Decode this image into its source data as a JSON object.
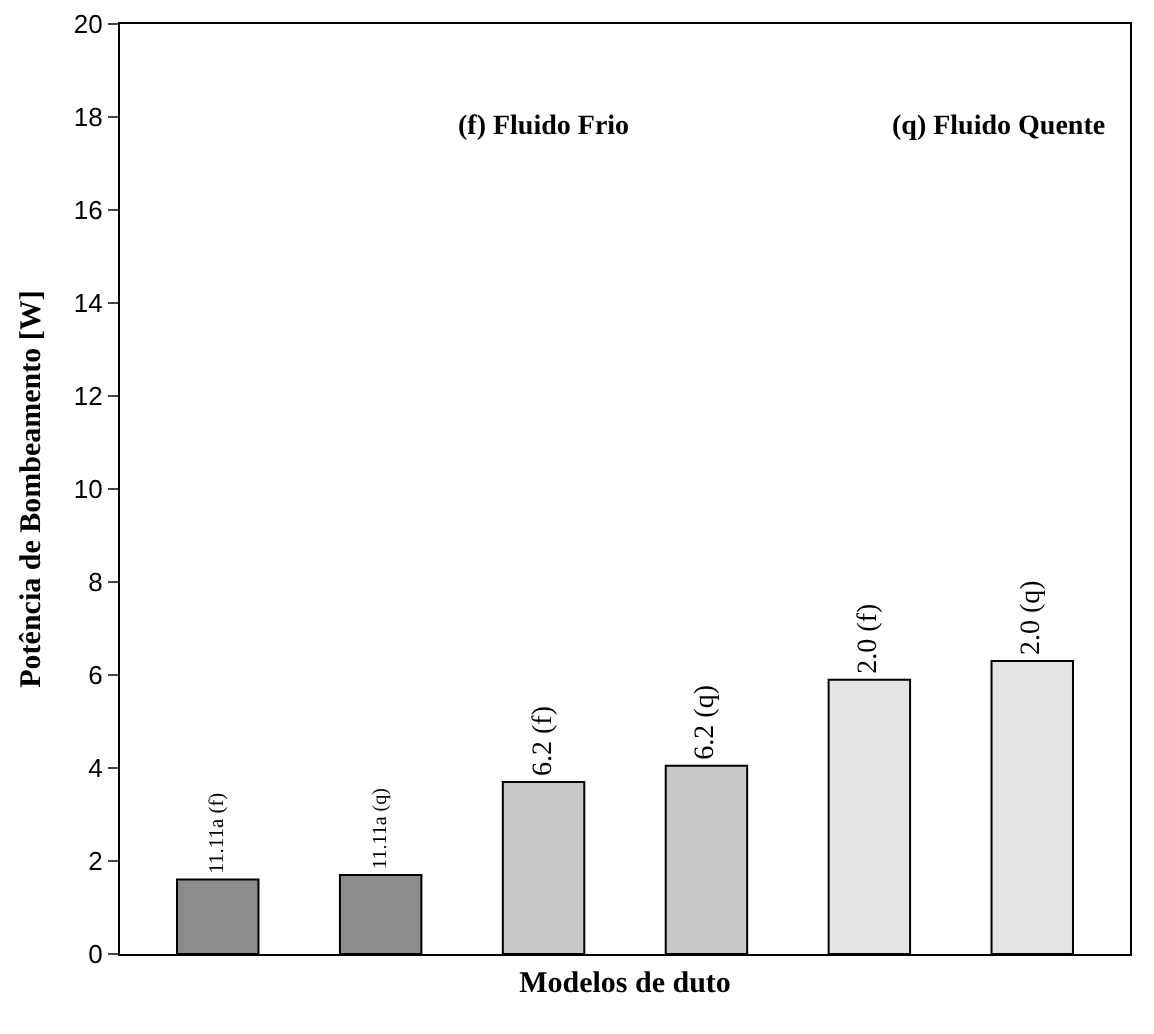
{
  "chart_data": {
    "type": "bar",
    "xlabel": "Modelos de duto",
    "ylabel": "Potência de Bombeamento [W]",
    "categories": [
      "11.11a (f)",
      "11.11a (q)",
      "6.2 (f)",
      "6.2 (q)",
      "2.0 (f)",
      "2.0 (q)"
    ],
    "values": [
      1.6,
      1.7,
      3.7,
      4.05,
      5.9,
      6.3
    ],
    "colors": [
      "#8c8c8c",
      "#8c8c8c",
      "#c8c8c8",
      "#c8c8c8",
      "#e4e4e4",
      "#e4e4e4"
    ],
    "ylim": [
      0,
      20
    ],
    "yticks": [
      0,
      2,
      4,
      6,
      8,
      10,
      12,
      14,
      16,
      18,
      20
    ],
    "grid": false,
    "tick_labels": "y",
    "annotations": [
      "(f) Fluido Frio",
      "(q) Fluido Quente"
    ]
  }
}
